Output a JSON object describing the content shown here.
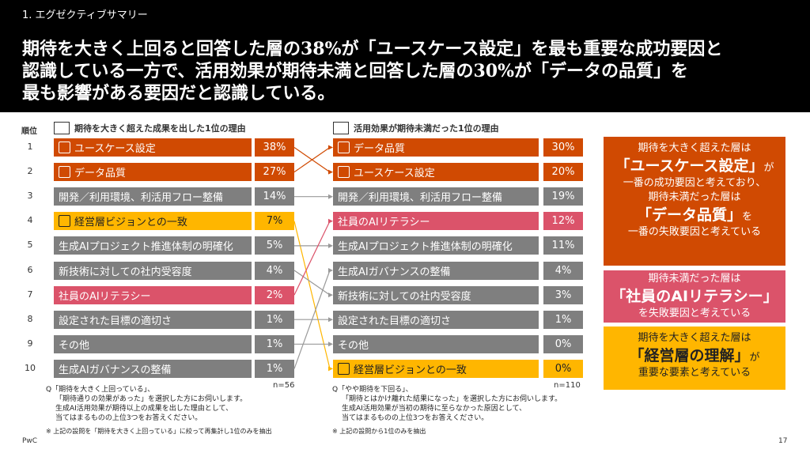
{
  "header": {
    "section": "1. エグゼクティブサマリー",
    "headline_lines": [
      "期待を大きく上回ると回答した層の38%が「ユースケース設定」を最も重要な成功要因と",
      "認識している一方で、活用効果が期待未満と回答した層の30%が「データの品質」を",
      "最も影響がある要因だと認識している。"
    ]
  },
  "rank_label": "順位",
  "ranks": [
    "1",
    "2",
    "3",
    "4",
    "5",
    "6",
    "7",
    "8",
    "9",
    "10"
  ],
  "left": {
    "title": "期待を大きく超えた成果を出した1位の理由",
    "items": [
      {
        "label": "ユースケース設定",
        "pct": "38%"
      },
      {
        "label": "データ品質",
        "pct": "27%"
      },
      {
        "label": "開発／利用環境、利活用フロー整備",
        "pct": "14%"
      },
      {
        "label": "経営層ビジョンとの一致",
        "pct": "7%"
      },
      {
        "label": "生成AIプロジェクト推進体制の明確化",
        "pct": "5%"
      },
      {
        "label": "新技術に対しての社内受容度",
        "pct": "4%"
      },
      {
        "label": "社員のAIリテラシー",
        "pct": "2%"
      },
      {
        "label": "設定された目標の適切さ",
        "pct": "1%"
      },
      {
        "label": "その他",
        "pct": "1%"
      },
      {
        "label": "生成AIガバナンスの整備",
        "pct": "1%"
      }
    ],
    "n": "n=56",
    "note": [
      "Q「期待を大きく上回っている」、",
      "「期待通りの効果があった」を選択した方にお伺いします。",
      "生成AI活用効果が期待以上の成果を出した理由として、",
      "当てはまるものの上位3つをお答えください。"
    ],
    "footnote": "※ 上記の設問を「期待を大きく上回っている」に絞って再集計し1位のみを抽出"
  },
  "right": {
    "title": "活用効果が期待未満だった1位の理由",
    "items": [
      {
        "label": "データ品質",
        "pct": "30%"
      },
      {
        "label": "ユースケース設定",
        "pct": "20%"
      },
      {
        "label": "開発／利用環境、利活用フロー整備",
        "pct": "19%"
      },
      {
        "label": "社員のAIリテラシー",
        "pct": "12%"
      },
      {
        "label": "生成AIプロジェクト推進体制の明確化",
        "pct": "11%"
      },
      {
        "label": "生成AIガバナンスの整備",
        "pct": "4%"
      },
      {
        "label": "新技術に対しての社内受容度",
        "pct": "3%"
      },
      {
        "label": "設定された目標の適切さ",
        "pct": "1%"
      },
      {
        "label": "その他",
        "pct": "0%"
      },
      {
        "label": "経営層ビジョンとの一致",
        "pct": "0%"
      }
    ],
    "n": "n=110",
    "note": [
      "Q「やや期待を下回る」、",
      "「期待とはかけ離れた結果になった」を選択した方にお伺いします。",
      "生成AI活用効果が当初の期待に至らなかった原因として、",
      "当てはまるものの上位3つをお答えください。"
    ],
    "footnote": "※ 上記の設問から1位のみを抽出"
  },
  "summary": {
    "box1": {
      "a": "期待を大きく超えた層は",
      "b": "「ユースケース設定」",
      "c": "が",
      "d": "一番の成功要因と考えており、",
      "e": "期待未満だった層は",
      "f": "「データ品質」",
      "g": "を",
      "h": "一番の失敗要因と考えている"
    },
    "box2": {
      "a": "期待未満だった層は",
      "b": "「社員のAIリテラシー」",
      "c": "を失敗要因と考えている"
    },
    "box3": {
      "a": "期待を大きく超えた層は",
      "b": "「経営層の理解」",
      "c": "が",
      "d": "重要な要素と考えている"
    }
  },
  "footer": {
    "brand": "PwC",
    "page": "17"
  },
  "colors": {
    "gray": "#7f7f7f",
    "orange": "#d04a02",
    "yellow": "#ffb600",
    "pink": "#db536a",
    "red": "#e0301e"
  }
}
